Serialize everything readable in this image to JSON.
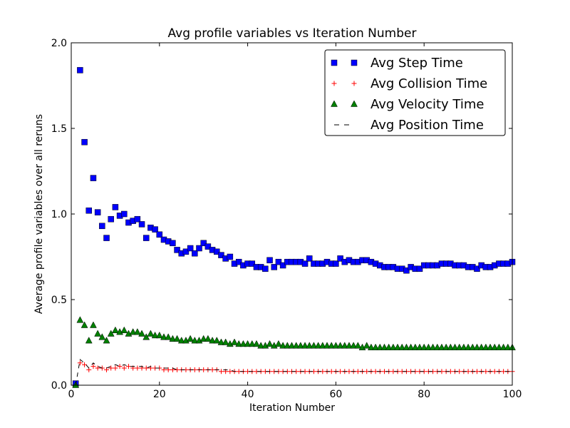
{
  "chart_data": {
    "type": "scatter",
    "title": "Avg profile variables vs Iteration Number",
    "xlabel": "Iteration Number",
    "ylabel": "Average profile variables over all reruns",
    "xlim": [
      0,
      100
    ],
    "ylim": [
      0.0,
      2.0
    ],
    "xticks": [
      "0",
      "20",
      "40",
      "60",
      "80",
      "100"
    ],
    "yticks": [
      "0.0",
      "0.5",
      "1.0",
      "1.5",
      "2.0"
    ],
    "grid": false,
    "legend_position": "top-right",
    "x": [
      1,
      2,
      3,
      4,
      5,
      6,
      7,
      8,
      9,
      10,
      11,
      12,
      13,
      14,
      15,
      16,
      17,
      18,
      19,
      20,
      21,
      22,
      23,
      24,
      25,
      26,
      27,
      28,
      29,
      30,
      31,
      32,
      33,
      34,
      35,
      36,
      37,
      38,
      39,
      40,
      41,
      42,
      43,
      44,
      45,
      46,
      47,
      48,
      49,
      50,
      51,
      52,
      53,
      54,
      55,
      56,
      57,
      58,
      59,
      60,
      61,
      62,
      63,
      64,
      65,
      66,
      67,
      68,
      69,
      70,
      71,
      72,
      73,
      74,
      75,
      76,
      77,
      78,
      79,
      80,
      81,
      82,
      83,
      84,
      85,
      86,
      87,
      88,
      89,
      90,
      91,
      92,
      93,
      94,
      95,
      96,
      97,
      98,
      99,
      100
    ],
    "series": [
      {
        "name": "Avg Step Time",
        "marker": "square",
        "color": "#0000ff",
        "values": [
          0.01,
          1.84,
          1.42,
          1.02,
          1.21,
          1.01,
          0.93,
          0.86,
          0.97,
          1.04,
          0.99,
          1.0,
          0.95,
          0.96,
          0.97,
          0.94,
          0.86,
          0.92,
          0.91,
          0.88,
          0.85,
          0.84,
          0.83,
          0.79,
          0.77,
          0.78,
          0.8,
          0.77,
          0.8,
          0.83,
          0.81,
          0.79,
          0.78,
          0.76,
          0.74,
          0.75,
          0.71,
          0.72,
          0.7,
          0.71,
          0.71,
          0.69,
          0.69,
          0.68,
          0.73,
          0.69,
          0.72,
          0.7,
          0.72,
          0.72,
          0.72,
          0.72,
          0.71,
          0.74,
          0.71,
          0.71,
          0.71,
          0.72,
          0.71,
          0.71,
          0.74,
          0.72,
          0.73,
          0.72,
          0.72,
          0.73,
          0.73,
          0.72,
          0.71,
          0.7,
          0.69,
          0.69,
          0.69,
          0.68,
          0.68,
          0.67,
          0.69,
          0.68,
          0.68,
          0.7,
          0.7,
          0.7,
          0.7,
          0.71,
          0.71,
          0.71,
          0.7,
          0.7,
          0.7,
          0.69,
          0.69,
          0.68,
          0.7,
          0.69,
          0.69,
          0.7,
          0.71,
          0.71,
          0.71,
          0.72
        ]
      },
      {
        "name": "Avg Collision Time",
        "marker": "plus",
        "color": "#ff0000",
        "values": [
          0.0,
          0.13,
          0.12,
          0.09,
          0.11,
          0.1,
          0.1,
          0.09,
          0.1,
          0.1,
          0.11,
          0.1,
          0.11,
          0.1,
          0.1,
          0.1,
          0.1,
          0.1,
          0.1,
          0.1,
          0.09,
          0.09,
          0.09,
          0.09,
          0.09,
          0.09,
          0.09,
          0.09,
          0.09,
          0.09,
          0.09,
          0.09,
          0.09,
          0.08,
          0.08,
          0.08,
          0.08,
          0.08,
          0.08,
          0.08,
          0.08,
          0.08,
          0.08,
          0.08,
          0.08,
          0.08,
          0.08,
          0.08,
          0.08,
          0.08,
          0.08,
          0.08,
          0.08,
          0.08,
          0.08,
          0.08,
          0.08,
          0.08,
          0.08,
          0.08,
          0.08,
          0.08,
          0.08,
          0.08,
          0.08,
          0.08,
          0.08,
          0.08,
          0.08,
          0.08,
          0.08,
          0.08,
          0.08,
          0.08,
          0.08,
          0.08,
          0.08,
          0.08,
          0.08,
          0.08,
          0.08,
          0.08,
          0.08,
          0.08,
          0.08,
          0.08,
          0.08,
          0.08,
          0.08,
          0.08,
          0.08,
          0.08,
          0.08,
          0.08,
          0.08,
          0.08,
          0.08,
          0.08,
          0.08,
          0.08
        ]
      },
      {
        "name": "Avg Velocity Time",
        "marker": "triangle",
        "color": "#008000",
        "values": [
          0.0,
          0.38,
          0.35,
          0.26,
          0.35,
          0.3,
          0.28,
          0.26,
          0.3,
          0.32,
          0.31,
          0.32,
          0.3,
          0.31,
          0.31,
          0.3,
          0.28,
          0.3,
          0.29,
          0.29,
          0.28,
          0.28,
          0.27,
          0.27,
          0.26,
          0.26,
          0.27,
          0.26,
          0.26,
          0.27,
          0.27,
          0.26,
          0.26,
          0.25,
          0.25,
          0.24,
          0.25,
          0.24,
          0.24,
          0.24,
          0.24,
          0.24,
          0.23,
          0.23,
          0.24,
          0.23,
          0.24,
          0.23,
          0.23,
          0.23,
          0.23,
          0.23,
          0.23,
          0.23,
          0.23,
          0.23,
          0.23,
          0.23,
          0.23,
          0.23,
          0.23,
          0.23,
          0.23,
          0.23,
          0.23,
          0.22,
          0.23,
          0.22,
          0.22,
          0.22,
          0.22,
          0.22,
          0.22,
          0.22,
          0.22,
          0.22,
          0.22,
          0.22,
          0.22,
          0.22,
          0.22,
          0.22,
          0.22,
          0.22,
          0.22,
          0.22,
          0.22,
          0.22,
          0.22,
          0.22,
          0.22,
          0.22,
          0.22,
          0.22,
          0.22,
          0.22,
          0.22,
          0.22,
          0.22,
          0.22
        ]
      },
      {
        "name": "Avg Position Time",
        "marker": "dashed-line",
        "color": "#000000",
        "values": [
          0.0,
          0.15,
          0.13,
          0.1,
          0.13,
          0.11,
          0.1,
          0.1,
          0.11,
          0.12,
          0.11,
          0.12,
          0.11,
          0.11,
          0.11,
          0.11,
          0.1,
          0.11,
          0.1,
          0.1,
          0.1,
          0.1,
          0.1,
          0.09,
          0.09,
          0.09,
          0.09,
          0.09,
          0.09,
          0.09,
          0.09,
          0.09,
          0.09,
          0.09,
          0.09,
          0.09,
          0.08,
          0.08,
          0.08,
          0.08,
          0.08,
          0.08,
          0.08,
          0.08,
          0.08,
          0.08,
          0.08,
          0.08,
          0.08,
          0.08,
          0.08,
          0.08,
          0.08,
          0.08,
          0.08,
          0.08,
          0.08,
          0.08,
          0.08,
          0.08,
          0.08,
          0.08,
          0.08,
          0.08,
          0.08,
          0.08,
          0.08,
          0.08,
          0.08,
          0.08,
          0.08,
          0.08,
          0.08,
          0.08,
          0.08,
          0.08,
          0.08,
          0.08,
          0.08,
          0.08,
          0.08,
          0.08,
          0.08,
          0.08,
          0.08,
          0.08,
          0.08,
          0.08,
          0.08,
          0.08,
          0.08,
          0.08,
          0.08,
          0.08,
          0.08,
          0.08,
          0.08,
          0.08,
          0.08,
          0.08
        ]
      }
    ]
  }
}
